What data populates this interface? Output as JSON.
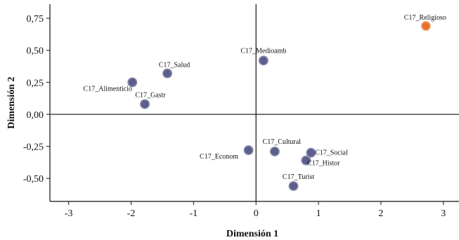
{
  "chart_data": {
    "type": "scatter",
    "title": "",
    "xlabel": "Dimensión 1",
    "ylabel": "Dimensión 2",
    "xlim": [
      -3.3,
      3.25
    ],
    "ylim": [
      -0.68,
      0.86
    ],
    "xticks": [
      -3,
      -2,
      -1,
      0,
      1,
      2,
      3
    ],
    "xtick_labels": [
      "-3",
      "-2",
      "-1",
      "0",
      "1",
      "2",
      "3"
    ],
    "yticks": [
      0.75,
      0.5,
      0.25,
      0.0,
      -0.25,
      -0.5
    ],
    "ytick_labels": [
      "0,75",
      "0,50",
      "0,25",
      "0,00",
      "-0,25",
      "-0,50"
    ],
    "grid": false,
    "reference_lines": {
      "x": 0,
      "y": 0
    },
    "colors": {
      "point": "#5b5f8a",
      "highlight": "#e8712e",
      "axis": "#111111"
    },
    "points": [
      {
        "label": "C17_Religioso",
        "x": 2.72,
        "y": 0.69,
        "highlight": true
      },
      {
        "label": "C17_Medioamb",
        "x": 0.12,
        "y": 0.42
      },
      {
        "label": "C17_Salud",
        "x": -1.42,
        "y": 0.32
      },
      {
        "label": "C17_Alimenticio",
        "x": -1.98,
        "y": 0.25
      },
      {
        "label": "C17_Gastr",
        "x": -1.78,
        "y": 0.08
      },
      {
        "label": "C17_Cultural",
        "x": 0.3,
        "y": -0.29
      },
      {
        "label": "C17_Econom",
        "x": -0.12,
        "y": -0.28
      },
      {
        "label": "C17_Social",
        "x": 0.88,
        "y": -0.3
      },
      {
        "label": "C17_Histor",
        "x": 0.8,
        "y": -0.36
      },
      {
        "label": "C17_Turist",
        "x": 0.6,
        "y": -0.56
      }
    ]
  }
}
